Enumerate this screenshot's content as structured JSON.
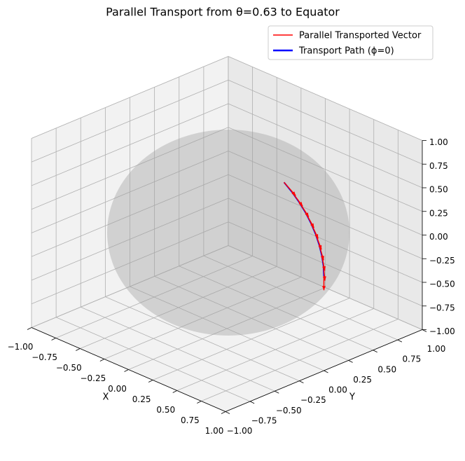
{
  "chart_data": {
    "type": "line3d",
    "title": "Parallel Transport from θ=0.63 to Equator",
    "xlabel": "X",
    "ylabel": "Y",
    "xlim": [
      -1,
      1
    ],
    "ylim": [
      -1,
      1
    ],
    "zlim": [
      -1,
      1
    ],
    "xticks": [
      {
        "value": -1,
        "label": "−1.00"
      },
      {
        "value": -0.75,
        "label": "−0.75"
      },
      {
        "value": -0.5,
        "label": "−0.50"
      },
      {
        "value": -0.25,
        "label": "−0.25"
      },
      {
        "value": 0,
        "label": "0.00"
      },
      {
        "value": 0.25,
        "label": "0.25"
      },
      {
        "value": 0.5,
        "label": "0.50"
      },
      {
        "value": 0.75,
        "label": "0.75"
      },
      {
        "value": 1,
        "label": "1.00"
      }
    ],
    "yticks": [
      {
        "value": -1,
        "label": "−1.00"
      },
      {
        "value": -0.75,
        "label": "−0.75"
      },
      {
        "value": -0.5,
        "label": "−0.50"
      },
      {
        "value": -0.25,
        "label": "−0.25"
      },
      {
        "value": 0,
        "label": "0.00"
      },
      {
        "value": 0.25,
        "label": "0.25"
      },
      {
        "value": 0.5,
        "label": "0.50"
      },
      {
        "value": 0.75,
        "label": "0.75"
      },
      {
        "value": 1,
        "label": "1.00"
      }
    ],
    "zticks": [
      {
        "value": -1,
        "label": "−1.00"
      },
      {
        "value": -0.75,
        "label": "−0.75"
      },
      {
        "value": -0.5,
        "label": "−0.50"
      },
      {
        "value": -0.25,
        "label": "−0.25"
      },
      {
        "value": 0,
        "label": "0.00"
      },
      {
        "value": 0.25,
        "label": "0.25"
      },
      {
        "value": 0.5,
        "label": "0.50"
      },
      {
        "value": 0.75,
        "label": "0.75"
      },
      {
        "value": 1,
        "label": "1.00"
      }
    ],
    "grid": true,
    "legend": "upper right",
    "series": [
      {
        "name": "Parallel Transported Vector",
        "color": "#ff0000",
        "kind": "quiver",
        "x": [
          0.589,
          0.67,
          0.744,
          0.81,
          0.866,
          0.914,
          0.951,
          0.978,
          0.995,
          1.0
        ],
        "y": [
          0,
          0,
          0,
          0,
          0,
          0,
          0,
          0,
          0,
          0
        ],
        "z": [
          0.808,
          0.742,
          0.668,
          0.587,
          0.5,
          0.406,
          0.309,
          0.208,
          0.105,
          0.0
        ],
        "u": [
          0.121,
          0.111,
          0.1,
          0.088,
          0.075,
          0.061,
          0.046,
          0.031,
          0.016,
          0.0
        ],
        "v": [
          0,
          0,
          0,
          0,
          0,
          0,
          0,
          0,
          0,
          0
        ],
        "w": [
          -0.088,
          -0.101,
          -0.112,
          -0.122,
          -0.13,
          -0.137,
          -0.143,
          -0.147,
          -0.149,
          -0.15
        ]
      },
      {
        "name": "Transport Path (ϕ=0)",
        "color": "#0000ff",
        "kind": "line",
        "x": [
          0.589,
          0.67,
          0.744,
          0.81,
          0.866,
          0.914,
          0.951,
          0.978,
          0.995,
          1.0
        ],
        "y": [
          0,
          0,
          0,
          0,
          0,
          0,
          0,
          0,
          0,
          0
        ],
        "z": [
          0.808,
          0.742,
          0.668,
          0.587,
          0.5,
          0.406,
          0.309,
          0.208,
          0.105,
          0.0
        ]
      }
    ]
  }
}
